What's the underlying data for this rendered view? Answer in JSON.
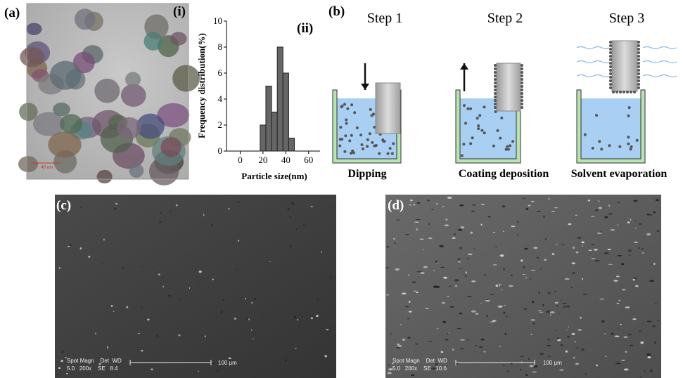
{
  "panel_a": {
    "label": "(a)",
    "tem_label": "(i)",
    "tem_scale": "40 nm",
    "hist_label": "(ii)"
  },
  "chart_data": {
    "type": "histogram",
    "x_label": "Particle size(nm)",
    "y_label": "Frequency distribution(%)",
    "bins": [
      17.5,
      22.5,
      27.5,
      32.5,
      37.5,
      42.5,
      47.5
    ],
    "values": [
      2,
      5,
      3,
      8,
      6,
      1
    ],
    "color": "#666666",
    "xlim": [
      -12,
      70
    ],
    "xticks": [
      0,
      20,
      40,
      60
    ],
    "ylim": [
      0,
      10
    ],
    "yticks": [
      0,
      2,
      4,
      6,
      8,
      10
    ]
  },
  "panel_b": {
    "label": "(b)",
    "steps": [
      {
        "title": "Step 1",
        "caption": "Dipping"
      },
      {
        "title": "Step 2",
        "caption": "Coating deposition"
      },
      {
        "title": "Step 3",
        "caption": "Solvent evaporation"
      }
    ]
  },
  "panel_c": {
    "label": "(c)",
    "info_header": "Spot Magn    Det  WD",
    "info_values": "5.0   200x    SE   8.4",
    "scale": "100 µm"
  },
  "panel_d": {
    "label": "(d)",
    "info_header": "Spot Magn    Det  WD",
    "info_values": "5.0   200x    SE   10.6",
    "scale": "100 µm"
  }
}
